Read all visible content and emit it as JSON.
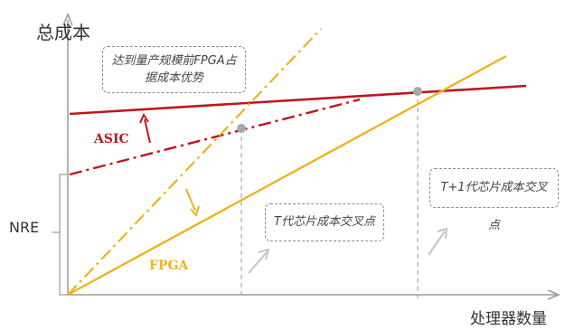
{
  "diagram": {
    "y_axis_label": "总成本",
    "x_axis_label": "处理器数量",
    "nre_label": "NRE",
    "asic_label": "ASIC",
    "fpga_label": "FPGA",
    "callout_top": "达到量产规模前FPGA占据成本优势",
    "callout_t": "T代芯片成本交叉点",
    "callout_t1": "T+1代芯片成本交叉点",
    "colors": {
      "asic": "#c0161e",
      "fpga": "#f0b21c",
      "axis": "#9a9a9a",
      "intersection_marker": "#a9a9a9"
    }
  }
}
